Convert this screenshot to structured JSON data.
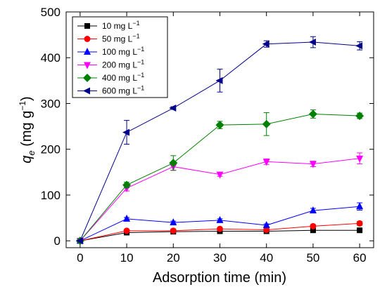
{
  "chart_data": {
    "type": "line",
    "xlabel": "Adsorption time (min)",
    "ylabel_main": "q",
    "ylabel_sub": "e",
    "ylabel_unit_open": " (mg g",
    "ylabel_unit_sup": "−1",
    "ylabel_unit_close": ")",
    "x": [
      0,
      10,
      20,
      30,
      40,
      50,
      60
    ],
    "xlim": [
      -3,
      63
    ],
    "ylim": [
      -15,
      500
    ],
    "xticks": [
      0,
      10,
      20,
      30,
      40,
      50,
      60
    ],
    "yticks": [
      0,
      100,
      200,
      300,
      400,
      500
    ],
    "legend_position": "top-left",
    "grid": false,
    "series": [
      {
        "name": "10 mg L",
        "unit_sup": "−1",
        "color": "#000000",
        "marker": "square",
        "values": [
          0,
          18,
          20,
          21,
          21,
          23,
          23
        ],
        "errors": [
          0,
          2,
          2,
          2,
          2,
          2,
          2
        ]
      },
      {
        "name": "50 mg L",
        "unit_sup": "−1",
        "color": "#ff0000",
        "marker": "circle",
        "values": [
          0,
          22,
          22,
          26,
          24,
          32,
          38
        ],
        "errors": [
          0,
          2,
          2,
          2,
          2,
          3,
          4
        ]
      },
      {
        "name": "100 mg L",
        "unit_sup": "−1",
        "color": "#0000ff",
        "marker": "triangle-up",
        "values": [
          0,
          48,
          40,
          45,
          34,
          66,
          75
        ],
        "errors": [
          0,
          3,
          3,
          3,
          3,
          5,
          8
        ]
      },
      {
        "name": "200 mg L",
        "unit_sup": "−1",
        "color": "#ff00ff",
        "marker": "triangle-down",
        "values": [
          0,
          115,
          162,
          145,
          173,
          168,
          180
        ],
        "errors": [
          0,
          6,
          8,
          4,
          6,
          6,
          12
        ]
      },
      {
        "name": "400 mg L",
        "unit_sup": "−1",
        "color": "#008000",
        "marker": "diamond",
        "values": [
          0,
          122,
          170,
          253,
          255,
          277,
          273
        ],
        "errors": [
          0,
          6,
          16,
          8,
          25,
          9,
          6
        ]
      },
      {
        "name": "600 mg L",
        "unit_sup": "−1",
        "color": "#00008b",
        "marker": "triangle-left",
        "values": [
          0,
          237,
          290,
          350,
          430,
          434,
          426
        ],
        "errors": [
          0,
          26,
          3,
          25,
          7,
          12,
          9
        ]
      }
    ]
  }
}
